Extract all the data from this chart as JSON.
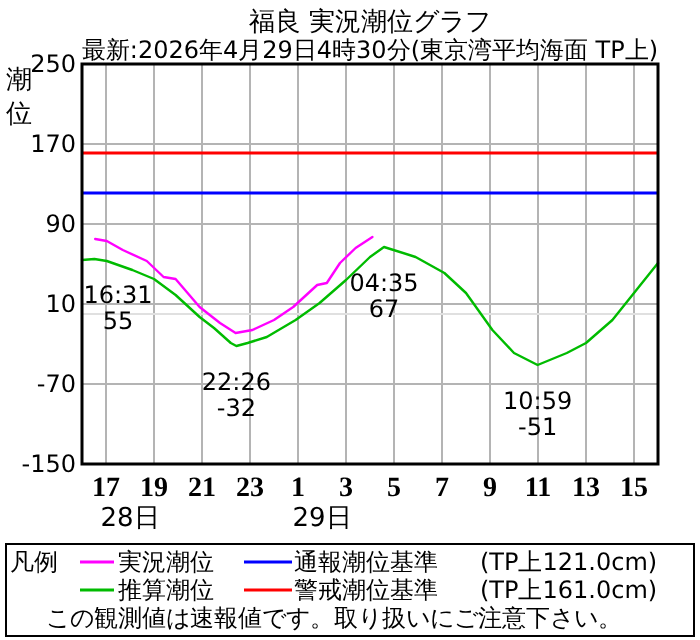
{
  "chart_data": {
    "type": "line",
    "title": "福良 実況潮位グラフ",
    "subtitle": "最新:2026年4月29日4時30分(東京湾平均海面 TP上)",
    "ylabel": "潮位",
    "legend_title": "凡例",
    "xlim": [
      "2026-04-28T16:00",
      "2026-04-29T16:00"
    ],
    "xticks": [
      {
        "value": "2026-04-28T17:00",
        "label": "17"
      },
      {
        "value": "2026-04-28T19:00",
        "label": "19"
      },
      {
        "value": "2026-04-28T21:00",
        "label": "21"
      },
      {
        "value": "2026-04-28T23:00",
        "label": "23"
      },
      {
        "value": "2026-04-29T01:00",
        "label": "1"
      },
      {
        "value": "2026-04-29T03:00",
        "label": "3"
      },
      {
        "value": "2026-04-29T05:00",
        "label": "5"
      },
      {
        "value": "2026-04-29T07:00",
        "label": "7"
      },
      {
        "value": "2026-04-29T09:00",
        "label": "9"
      },
      {
        "value": "2026-04-29T11:00",
        "label": "11"
      },
      {
        "value": "2026-04-29T13:00",
        "label": "13"
      },
      {
        "value": "2026-04-29T15:00",
        "label": "15"
      }
    ],
    "ylim": [
      -150,
      250
    ],
    "yticks": [
      -150,
      -70,
      10,
      90,
      170,
      250
    ],
    "grid": true,
    "legend": "bottom",
    "series": [
      {
        "name": "実況潮位",
        "color": "#ff00ff",
        "x": [
          "2026-04-28T16:33",
          "2026-04-28T17:02",
          "2026-04-28T17:42",
          "2026-04-28T18:42",
          "2026-04-28T19:24",
          "2026-04-28T19:54",
          "2026-04-28T20:54",
          "2026-04-28T21:45",
          "2026-04-28T22:24",
          "2026-04-28T23:06",
          "2026-04-29T00:00",
          "2026-04-29T00:48",
          "2026-04-29T01:48",
          "2026-04-29T02:12",
          "2026-04-29T02:45",
          "2026-04-29T03:24",
          "2026-04-29T04:06"
        ],
        "values": [
          75,
          73,
          64,
          53,
          37,
          35,
          7,
          -9,
          -19,
          -16,
          -6,
          7,
          29,
          31,
          51,
          66,
          77
        ]
      },
      {
        "name": "推算潮位",
        "color": "#00bb00",
        "x": [
          "2026-04-28T16:00",
          "2026-04-28T16:31",
          "2026-04-28T17:02",
          "2026-04-28T18:06",
          "2026-04-28T19:00",
          "2026-04-28T19:54",
          "2026-04-28T20:54",
          "2026-04-28T21:30",
          "2026-04-28T22:12",
          "2026-04-28T22:26",
          "2026-04-28T22:54",
          "2026-04-28T23:42",
          "2026-04-29T00:54",
          "2026-04-29T01:54",
          "2026-04-29T03:00",
          "2026-04-29T04:00",
          "2026-04-29T04:35",
          "2026-04-29T05:54",
          "2026-04-29T07:06",
          "2026-04-29T08:00",
          "2026-04-29T09:06",
          "2026-04-29T10:00",
          "2026-04-29T10:59",
          "2026-04-29T12:12",
          "2026-04-29T13:00",
          "2026-04-29T14:06",
          "2026-04-29T15:06",
          "2026-04-29T16:00"
        ],
        "values": [
          54,
          55,
          53,
          44,
          35,
          19,
          -3,
          -14,
          -29,
          -32,
          -29,
          -23,
          -6,
          11,
          34,
          57,
          67,
          57,
          41,
          21,
          -16,
          -39,
          -51,
          -39,
          -29,
          -6,
          24,
          51
        ]
      }
    ],
    "ref_lines": [
      {
        "axis": "y",
        "value": 0,
        "color": "#e0e0e0"
      },
      {
        "axis": "y",
        "value": 121,
        "label": "通報潮位基準",
        "color": "#0000ff"
      },
      {
        "axis": "y",
        "value": 161,
        "label": "警戒潮位基準",
        "color": "#ff0000"
      }
    ],
    "annotations": [
      {
        "text": "16:31\n55",
        "x": "2026-04-28T16:31",
        "y": 55
      },
      {
        "text": "22:26\n-32",
        "x": "2026-04-28T22:26",
        "y": -32
      },
      {
        "text": "04:35\n67",
        "x": "2026-04-29T04:35",
        "y": 67
      },
      {
        "text": "10:59\n-51",
        "x": "2026-04-29T10:59",
        "y": -51
      },
      "28日",
      "29日",
      "(TP上121.0cm)",
      "(TP上161.0cm)",
      "この観測値は速報値です。取り扱いにご注意下さい。"
    ]
  }
}
